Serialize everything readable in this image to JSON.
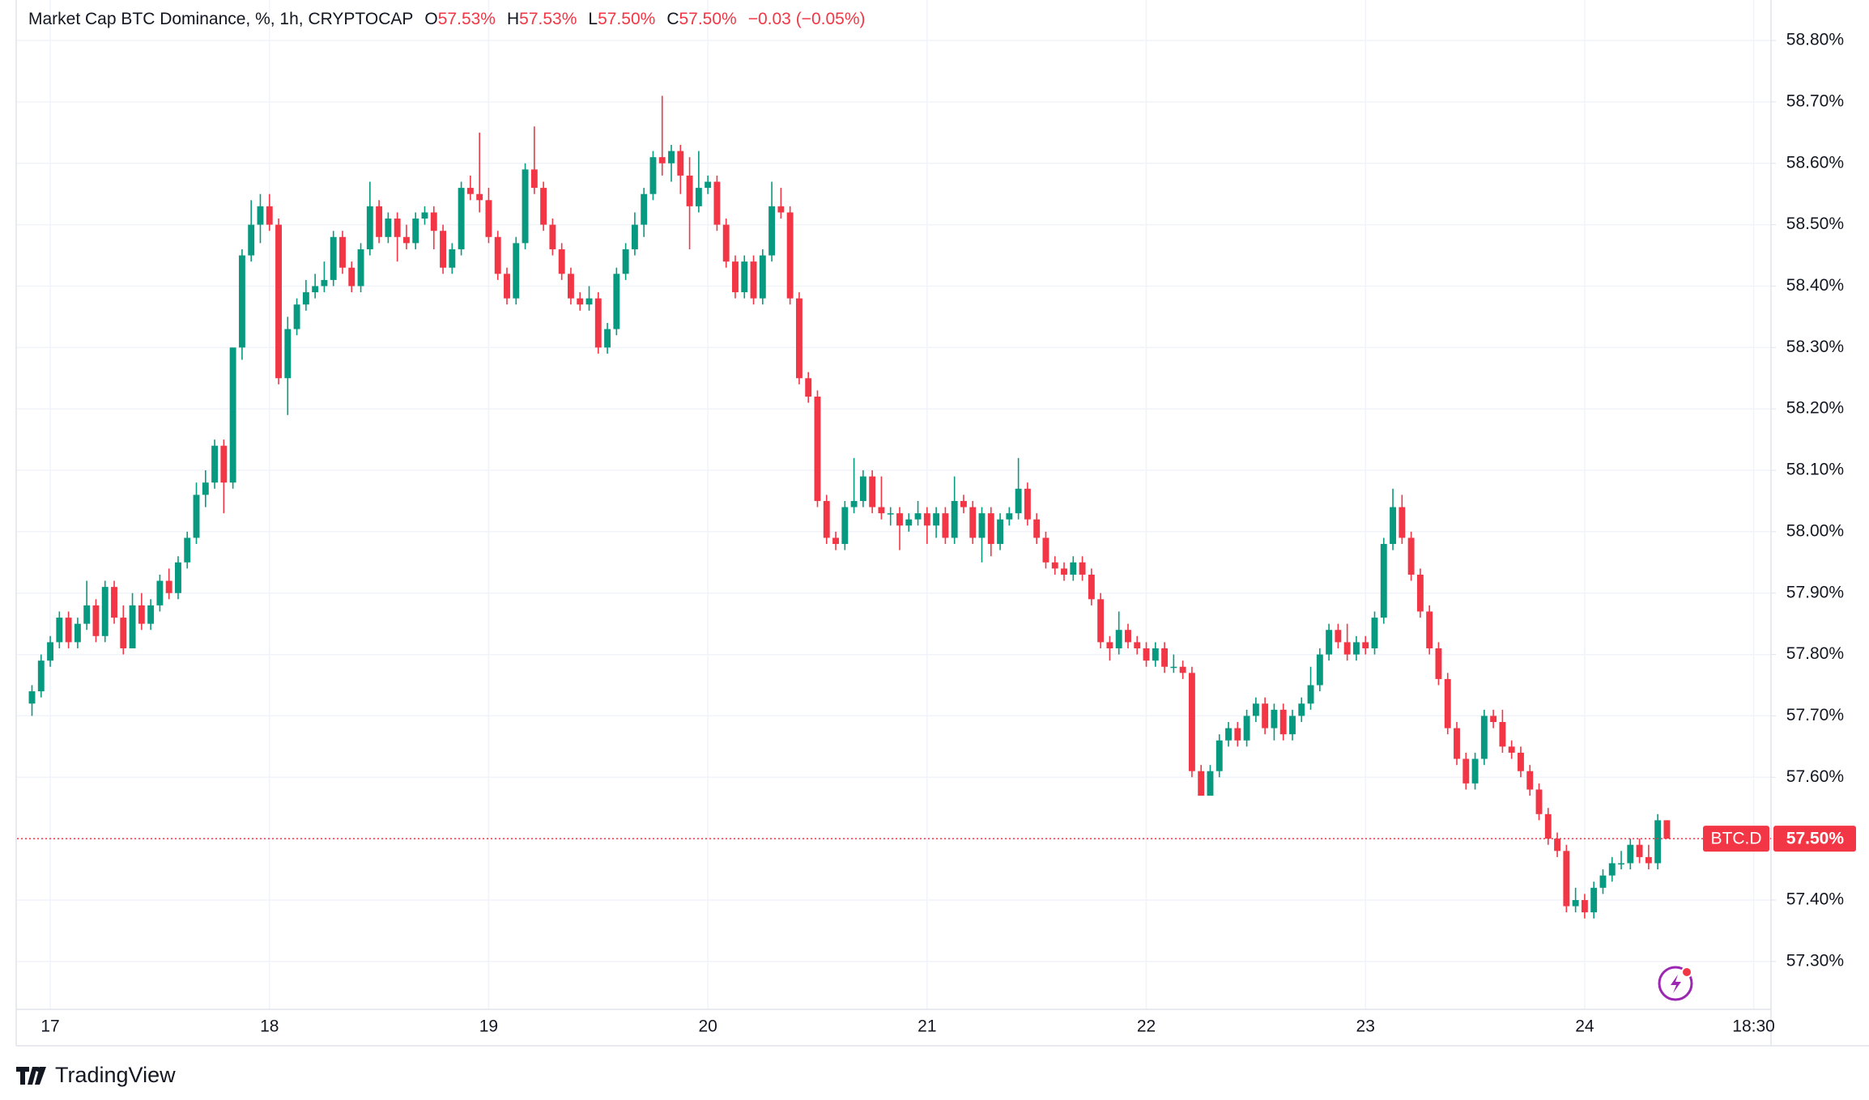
{
  "chart_data": {
    "type": "candlestick",
    "title": "Market Cap BTC Dominance, %, 1h, CRYPTOCAP",
    "ohlc_legend": [
      {
        "key": "O",
        "value": "57.53%"
      },
      {
        "key": "H",
        "value": "57.53%"
      },
      {
        "key": "L",
        "value": "57.50%"
      },
      {
        "key": "C",
        "value": "57.50%"
      }
    ],
    "change": "−0.03 (−0.05%)",
    "symbol_tag": "BTC.D",
    "last_price_label": "57.50%",
    "brand": "TradingView",
    "up_color": "#089981",
    "down_color": "#f23645",
    "grid": true,
    "xlim": [
      -3.64,
      188.4
    ],
    "xticks": [
      {
        "value": 0,
        "label": "17"
      },
      {
        "value": 24,
        "label": "18"
      },
      {
        "value": 48,
        "label": "19"
      },
      {
        "value": 72,
        "label": "20"
      },
      {
        "value": 96,
        "label": "21"
      },
      {
        "value": 120,
        "label": "22"
      },
      {
        "value": 144,
        "label": "23"
      },
      {
        "value": 168,
        "label": "24"
      },
      {
        "value": 186.5,
        "label": "18:30"
      }
    ],
    "ylim": [
      57.222,
      58.866
    ],
    "yticks": [
      {
        "value": 57.3,
        "label": "57.30%"
      },
      {
        "value": 57.4,
        "label": "57.40%"
      },
      {
        "value": 57.5,
        "label": "57.50%"
      },
      {
        "value": 57.6,
        "label": "57.60%"
      },
      {
        "value": 57.7,
        "label": "57.70%"
      },
      {
        "value": 57.8,
        "label": "57.80%"
      },
      {
        "value": 57.9,
        "label": "57.90%"
      },
      {
        "value": 58.0,
        "label": "58.00%"
      },
      {
        "value": 58.1,
        "label": "58.10%"
      },
      {
        "value": 58.2,
        "label": "58.20%"
      },
      {
        "value": 58.3,
        "label": "58.30%"
      },
      {
        "value": 58.4,
        "label": "58.40%"
      },
      {
        "value": 58.5,
        "label": "58.50%"
      },
      {
        "value": 58.6,
        "label": "58.60%"
      },
      {
        "value": 58.7,
        "label": "58.70%"
      },
      {
        "value": 58.8,
        "label": "58.80%"
      }
    ],
    "x": [
      -2,
      -1,
      0,
      1,
      2,
      3,
      4,
      5,
      6,
      7,
      8,
      9,
      10,
      11,
      12,
      13,
      14,
      15,
      16,
      17,
      18,
      19,
      20,
      21,
      22,
      23,
      24,
      25,
      26,
      27,
      28,
      29,
      30,
      31,
      32,
      33,
      34,
      35,
      36,
      37,
      38,
      39,
      40,
      41,
      42,
      43,
      44,
      45,
      46,
      47,
      48,
      49,
      50,
      51,
      52,
      53,
      54,
      55,
      56,
      57,
      58,
      59,
      60,
      61,
      62,
      63,
      64,
      65,
      66,
      67,
      68,
      69,
      70,
      71,
      72,
      73,
      74,
      75,
      76,
      77,
      78,
      79,
      80,
      81,
      82,
      83,
      84,
      85,
      86,
      87,
      88,
      89,
      90,
      91,
      92,
      93,
      94,
      95,
      96,
      97,
      98,
      99,
      100,
      101,
      102,
      103,
      104,
      105,
      106,
      107,
      108,
      109,
      110,
      111,
      112,
      113,
      114,
      115,
      116,
      117,
      118,
      119,
      120,
      121,
      122,
      123,
      124,
      125,
      126,
      127,
      128,
      129,
      130,
      131,
      132,
      133,
      134,
      135,
      136,
      137,
      138,
      139,
      140,
      141,
      142,
      143,
      144,
      145,
      146,
      147,
      148,
      149,
      150,
      151,
      152,
      153,
      154,
      155,
      156,
      157,
      158,
      159,
      160,
      161,
      162,
      163,
      164,
      165,
      166,
      167,
      168,
      169,
      170,
      171,
      172,
      173,
      174,
      175,
      176,
      177
    ],
    "ohlc": [
      [
        57.72,
        57.75,
        57.7,
        57.74
      ],
      [
        57.74,
        57.8,
        57.73,
        57.79
      ],
      [
        57.79,
        57.83,
        57.78,
        57.82
      ],
      [
        57.82,
        57.87,
        57.81,
        57.86
      ],
      [
        57.86,
        57.87,
        57.81,
        57.82
      ],
      [
        57.82,
        57.86,
        57.81,
        57.85
      ],
      [
        57.85,
        57.92,
        57.84,
        57.88
      ],
      [
        57.88,
        57.89,
        57.82,
        57.83
      ],
      [
        57.83,
        57.92,
        57.82,
        57.91
      ],
      [
        57.91,
        57.92,
        57.85,
        57.86
      ],
      [
        57.86,
        57.88,
        57.8,
        57.81
      ],
      [
        57.81,
        57.9,
        57.81,
        57.88
      ],
      [
        57.88,
        57.9,
        57.84,
        57.85
      ],
      [
        57.85,
        57.89,
        57.84,
        57.88
      ],
      [
        57.88,
        57.93,
        57.87,
        57.92
      ],
      [
        57.92,
        57.94,
        57.89,
        57.9
      ],
      [
        57.9,
        57.96,
        57.89,
        57.95
      ],
      [
        57.95,
        58.0,
        57.94,
        57.99
      ],
      [
        57.99,
        58.08,
        57.98,
        58.06
      ],
      [
        58.06,
        58.1,
        58.04,
        58.08
      ],
      [
        58.08,
        58.15,
        58.07,
        58.14
      ],
      [
        58.14,
        58.15,
        58.03,
        58.08
      ],
      [
        58.08,
        58.3,
        58.07,
        58.3
      ],
      [
        58.3,
        58.46,
        58.28,
        58.45
      ],
      [
        58.45,
        58.54,
        58.44,
        58.5
      ],
      [
        58.5,
        58.55,
        58.47,
        58.53
      ],
      [
        58.53,
        58.55,
        58.49,
        58.5
      ],
      [
        58.5,
        58.51,
        58.24,
        58.25
      ],
      [
        58.25,
        58.35,
        58.19,
        58.33
      ],
      [
        58.33,
        58.38,
        58.32,
        58.37
      ],
      [
        58.37,
        58.41,
        58.36,
        58.39
      ],
      [
        58.39,
        58.42,
        58.38,
        58.4
      ],
      [
        58.4,
        58.44,
        58.39,
        58.41
      ],
      [
        58.41,
        58.49,
        58.4,
        58.48
      ],
      [
        58.48,
        58.49,
        58.42,
        58.43
      ],
      [
        58.43,
        58.44,
        58.39,
        58.4
      ],
      [
        58.4,
        58.47,
        58.39,
        58.46
      ],
      [
        58.46,
        58.57,
        58.45,
        58.53
      ],
      [
        58.53,
        58.54,
        58.47,
        58.48
      ],
      [
        58.48,
        58.52,
        58.47,
        58.51
      ],
      [
        58.51,
        58.52,
        58.44,
        58.48
      ],
      [
        58.48,
        58.5,
        58.46,
        58.47
      ],
      [
        58.47,
        58.52,
        58.46,
        58.51
      ],
      [
        58.51,
        58.53,
        58.5,
        58.52
      ],
      [
        58.52,
        58.53,
        58.46,
        58.49
      ],
      [
        58.49,
        58.5,
        58.42,
        58.43
      ],
      [
        58.43,
        58.47,
        58.42,
        58.46
      ],
      [
        58.46,
        58.57,
        58.45,
        58.56
      ],
      [
        58.56,
        58.58,
        58.54,
        58.55
      ],
      [
        58.55,
        58.65,
        58.52,
        58.54
      ],
      [
        58.54,
        58.56,
        58.47,
        58.48
      ],
      [
        58.48,
        58.49,
        58.41,
        58.42
      ],
      [
        58.42,
        58.43,
        58.37,
        58.38
      ],
      [
        58.38,
        58.48,
        58.37,
        58.47
      ],
      [
        58.47,
        58.6,
        58.46,
        58.59
      ],
      [
        58.59,
        58.66,
        58.55,
        58.56
      ],
      [
        58.56,
        58.57,
        58.49,
        58.5
      ],
      [
        58.5,
        58.51,
        58.45,
        58.46
      ],
      [
        58.46,
        58.47,
        58.41,
        58.42
      ],
      [
        58.42,
        58.43,
        58.37,
        58.38
      ],
      [
        58.38,
        58.39,
        58.36,
        58.37
      ],
      [
        58.37,
        58.4,
        58.36,
        58.38
      ],
      [
        58.38,
        58.39,
        58.29,
        58.3
      ],
      [
        58.3,
        58.34,
        58.29,
        58.33
      ],
      [
        58.33,
        58.43,
        58.32,
        58.42
      ],
      [
        58.42,
        58.47,
        58.41,
        58.46
      ],
      [
        58.46,
        58.52,
        58.45,
        58.5
      ],
      [
        58.5,
        58.56,
        58.48,
        58.55
      ],
      [
        58.55,
        58.62,
        58.54,
        58.61
      ],
      [
        58.61,
        58.71,
        58.58,
        58.6
      ],
      [
        58.6,
        58.63,
        58.57,
        58.62
      ],
      [
        58.62,
        58.63,
        58.55,
        58.58
      ],
      [
        58.58,
        58.61,
        58.46,
        58.53
      ],
      [
        58.53,
        58.62,
        58.52,
        58.56
      ],
      [
        58.56,
        58.58,
        58.55,
        58.57
      ],
      [
        58.57,
        58.58,
        58.49,
        58.5
      ],
      [
        58.5,
        58.51,
        58.43,
        58.44
      ],
      [
        58.44,
        58.45,
        58.38,
        58.39
      ],
      [
        58.39,
        58.45,
        58.38,
        58.44
      ],
      [
        58.44,
        58.45,
        58.37,
        58.38
      ],
      [
        58.38,
        58.46,
        58.37,
        58.45
      ],
      [
        58.45,
        58.57,
        58.44,
        58.53
      ],
      [
        58.53,
        58.56,
        58.51,
        58.52
      ],
      [
        58.52,
        58.53,
        58.37,
        58.38
      ],
      [
        58.38,
        58.39,
        58.24,
        58.25
      ],
      [
        58.25,
        58.26,
        58.21,
        58.22
      ],
      [
        58.22,
        58.23,
        58.04,
        58.05
      ],
      [
        58.05,
        58.06,
        57.98,
        57.99
      ],
      [
        57.99,
        58.0,
        57.97,
        57.98
      ],
      [
        57.98,
        58.05,
        57.97,
        58.04
      ],
      [
        58.04,
        58.12,
        58.03,
        58.05
      ],
      [
        58.05,
        58.1,
        58.04,
        58.09
      ],
      [
        58.09,
        58.1,
        58.03,
        58.04
      ],
      [
        58.04,
        58.09,
        58.02,
        58.03
      ],
      [
        58.03,
        58.04,
        58.01,
        58.03
      ],
      [
        58.03,
        58.04,
        57.97,
        58.01
      ],
      [
        58.01,
        58.03,
        58.0,
        58.02
      ],
      [
        58.02,
        58.05,
        58.01,
        58.03
      ],
      [
        58.03,
        58.04,
        57.98,
        58.01
      ],
      [
        58.01,
        58.04,
        57.99,
        58.03
      ],
      [
        58.03,
        58.04,
        57.98,
        57.99
      ],
      [
        57.99,
        58.09,
        57.98,
        58.05
      ],
      [
        58.05,
        58.06,
        58.03,
        58.04
      ],
      [
        58.04,
        58.05,
        57.98,
        57.99
      ],
      [
        57.99,
        58.04,
        57.95,
        58.03
      ],
      [
        58.03,
        58.04,
        57.96,
        57.98
      ],
      [
        57.98,
        58.03,
        57.97,
        58.02
      ],
      [
        58.02,
        58.04,
        58.01,
        58.03
      ],
      [
        58.03,
        58.12,
        58.02,
        58.07
      ],
      [
        58.07,
        58.08,
        58.01,
        58.02
      ],
      [
        58.02,
        58.03,
        57.98,
        57.99
      ],
      [
        57.99,
        58.0,
        57.94,
        57.95
      ],
      [
        57.95,
        57.96,
        57.93,
        57.94
      ],
      [
        57.94,
        57.95,
        57.92,
        57.93
      ],
      [
        57.93,
        57.96,
        57.92,
        57.95
      ],
      [
        57.95,
        57.96,
        57.92,
        57.93
      ],
      [
        57.93,
        57.94,
        57.88,
        57.89
      ],
      [
        57.89,
        57.9,
        57.81,
        57.82
      ],
      [
        57.82,
        57.83,
        57.79,
        57.81
      ],
      [
        57.81,
        57.87,
        57.8,
        57.84
      ],
      [
        57.84,
        57.85,
        57.81,
        57.82
      ],
      [
        57.82,
        57.83,
        57.8,
        57.81
      ],
      [
        57.81,
        57.82,
        57.78,
        57.79
      ],
      [
        57.79,
        57.82,
        57.78,
        57.81
      ],
      [
        57.81,
        57.82,
        57.77,
        57.78
      ],
      [
        57.78,
        57.8,
        57.77,
        57.78
      ],
      [
        57.78,
        57.79,
        57.76,
        57.77
      ],
      [
        57.77,
        57.78,
        57.6,
        57.61
      ],
      [
        57.61,
        57.62,
        57.57,
        57.57
      ],
      [
        57.57,
        57.62,
        57.57,
        57.61
      ],
      [
        57.61,
        57.67,
        57.6,
        57.66
      ],
      [
        57.66,
        57.69,
        57.65,
        57.68
      ],
      [
        57.68,
        57.69,
        57.65,
        57.66
      ],
      [
        57.66,
        57.71,
        57.65,
        57.7
      ],
      [
        57.7,
        57.73,
        57.69,
        57.72
      ],
      [
        57.72,
        57.73,
        57.67,
        57.68
      ],
      [
        57.68,
        57.72,
        57.66,
        57.71
      ],
      [
        57.71,
        57.72,
        57.66,
        57.67
      ],
      [
        57.67,
        57.71,
        57.66,
        57.7
      ],
      [
        57.7,
        57.73,
        57.69,
        57.72
      ],
      [
        57.72,
        57.78,
        57.71,
        57.75
      ],
      [
        57.75,
        57.81,
        57.74,
        57.8
      ],
      [
        57.8,
        57.85,
        57.79,
        57.84
      ],
      [
        57.84,
        57.85,
        57.81,
        57.82
      ],
      [
        57.82,
        57.85,
        57.79,
        57.8
      ],
      [
        57.8,
        57.83,
        57.79,
        57.82
      ],
      [
        57.82,
        57.83,
        57.8,
        57.81
      ],
      [
        57.81,
        57.87,
        57.8,
        57.86
      ],
      [
        57.86,
        57.99,
        57.85,
        57.98
      ],
      [
        57.98,
        58.07,
        57.97,
        58.04
      ],
      [
        58.04,
        58.06,
        57.98,
        57.99
      ],
      [
        57.99,
        58.0,
        57.92,
        57.93
      ],
      [
        57.93,
        57.94,
        57.86,
        57.87
      ],
      [
        57.87,
        57.88,
        57.8,
        57.81
      ],
      [
        57.81,
        57.82,
        57.75,
        57.76
      ],
      [
        57.76,
        57.77,
        57.67,
        57.68
      ],
      [
        57.68,
        57.69,
        57.62,
        57.63
      ],
      [
        57.63,
        57.64,
        57.58,
        57.59
      ],
      [
        57.59,
        57.64,
        57.58,
        57.63
      ],
      [
        57.63,
        57.71,
        57.62,
        57.7
      ],
      [
        57.7,
        57.71,
        57.68,
        57.69
      ],
      [
        57.69,
        57.71,
        57.64,
        57.65
      ],
      [
        57.65,
        57.66,
        57.63,
        57.64
      ],
      [
        57.64,
        57.65,
        57.6,
        57.61
      ],
      [
        57.61,
        57.62,
        57.57,
        57.58
      ],
      [
        57.58,
        57.59,
        57.53,
        57.54
      ],
      [
        57.54,
        57.55,
        57.49,
        57.5
      ],
      [
        57.5,
        57.51,
        57.47,
        57.48
      ],
      [
        57.48,
        57.49,
        57.38,
        57.39
      ],
      [
        57.39,
        57.42,
        57.38,
        57.4
      ],
      [
        57.4,
        57.41,
        57.37,
        57.38
      ],
      [
        57.38,
        57.43,
        57.37,
        57.42
      ],
      [
        57.42,
        57.45,
        57.41,
        57.44
      ],
      [
        57.44,
        57.47,
        57.43,
        57.46
      ],
      [
        57.46,
        57.48,
        57.45,
        57.46
      ],
      [
        57.46,
        57.5,
        57.45,
        57.49
      ],
      [
        57.49,
        57.5,
        57.46,
        57.47
      ],
      [
        57.47,
        57.49,
        57.45,
        57.46
      ],
      [
        57.46,
        57.54,
        57.45,
        57.53
      ],
      [
        57.53,
        57.53,
        57.5,
        57.5
      ]
    ]
  }
}
